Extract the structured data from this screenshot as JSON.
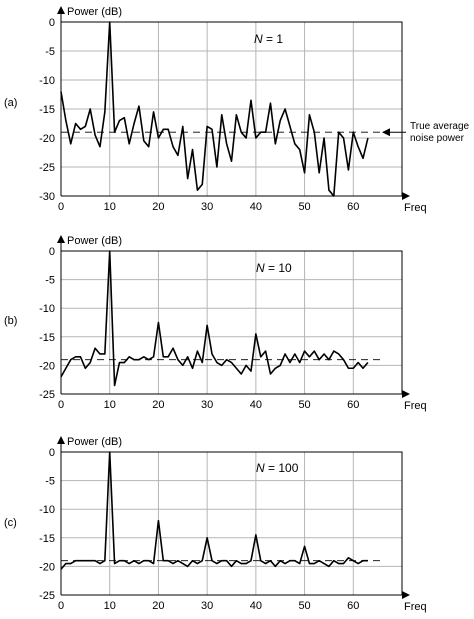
{
  "chart_data": [
    {
      "type": "line",
      "panel_label": "(a)",
      "n_label": "N = 1",
      "n_italic": "N",
      "n_rest": " = 1",
      "ylabel": "Power (dB)",
      "xlabel": "Freq",
      "xlim": [
        0,
        70
      ],
      "ylim": [
        -30,
        0
      ],
      "xticks": [
        0,
        10,
        20,
        30,
        40,
        50,
        60
      ],
      "yticks": [
        0,
        -5,
        -10,
        -15,
        -20,
        -25,
        -30
      ],
      "reference_level": -19,
      "annotation": [
        "True average",
        "noise power"
      ],
      "x": [
        0,
        1,
        2,
        3,
        4,
        5,
        6,
        7,
        8,
        9,
        10,
        11,
        12,
        13,
        14,
        15,
        16,
        17,
        18,
        19,
        20,
        21,
        22,
        23,
        24,
        25,
        26,
        27,
        28,
        29,
        30,
        31,
        32,
        33,
        34,
        35,
        36,
        37,
        38,
        39,
        40,
        41,
        42,
        43,
        44,
        45,
        46,
        47,
        48,
        49,
        50,
        51,
        52,
        53,
        54,
        55,
        56,
        57,
        58,
        59,
        60,
        61,
        62,
        63
      ],
      "values": [
        -12,
        -17,
        -21,
        -17.5,
        -18.5,
        -18,
        -15,
        -19.5,
        -21.5,
        -15.5,
        0,
        -19,
        -17,
        -16.5,
        -21,
        -17.5,
        -14.5,
        -20.5,
        -21.5,
        -15.5,
        -20,
        -18.5,
        -18.5,
        -21.5,
        -23,
        -18,
        -27,
        -22,
        -29,
        -28,
        -18,
        -18.5,
        -25,
        -16,
        -21,
        -24,
        -16,
        -19,
        -20,
        -13.5,
        -20,
        -19,
        -19,
        -14,
        -21,
        -17,
        -15,
        -18,
        -21,
        -22,
        -26,
        -16,
        -19,
        -26,
        -20,
        -29,
        -30,
        -19,
        -20,
        -25.5,
        -19,
        -21.5,
        -23.5,
        -20
      ]
    },
    {
      "type": "line",
      "panel_label": "(b)",
      "n_label": "N = 10",
      "n_italic": "N",
      "n_rest": " = 10",
      "ylabel": "Power (dB)",
      "xlabel": "Freq",
      "xlim": [
        0,
        70
      ],
      "ylim": [
        -25,
        0
      ],
      "xticks": [
        0,
        10,
        20,
        30,
        40,
        50,
        60
      ],
      "yticks": [
        0,
        -5,
        -10,
        -15,
        -20,
        -25
      ],
      "reference_level": -19,
      "x": [
        0,
        1,
        2,
        3,
        4,
        5,
        6,
        7,
        8,
        9,
        10,
        11,
        12,
        13,
        14,
        15,
        16,
        17,
        18,
        19,
        20,
        21,
        22,
        23,
        24,
        25,
        26,
        27,
        28,
        29,
        30,
        31,
        32,
        33,
        34,
        35,
        36,
        37,
        38,
        39,
        40,
        41,
        42,
        43,
        44,
        45,
        46,
        47,
        48,
        49,
        50,
        51,
        52,
        53,
        54,
        55,
        56,
        57,
        58,
        59,
        60,
        61,
        62,
        63
      ],
      "values": [
        -22,
        -20.5,
        -19,
        -18.5,
        -18.5,
        -20.5,
        -19.5,
        -17,
        -18,
        -18,
        0,
        -23.5,
        -19.5,
        -19.5,
        -18.5,
        -19,
        -19,
        -18.5,
        -19,
        -18.5,
        -12.5,
        -18.5,
        -18.5,
        -17,
        -19,
        -20,
        -18.5,
        -20.5,
        -17.5,
        -19.5,
        -13,
        -18,
        -19.5,
        -20,
        -19,
        -19.5,
        -20.5,
        -21.5,
        -20,
        -21,
        -14.5,
        -18.5,
        -17.5,
        -21.5,
        -20.5,
        -20,
        -18,
        -19.5,
        -18,
        -19.5,
        -17.5,
        -18.5,
        -17.5,
        -19,
        -18,
        -19,
        -17.5,
        -18,
        -19,
        -20.5,
        -20.5,
        -19.5,
        -20.5,
        -19.5
      ]
    },
    {
      "type": "line",
      "panel_label": "(c)",
      "n_label": "N = 100",
      "n_italic": "N",
      "n_rest": " = 100",
      "ylabel": "Power (dB)",
      "xlabel": "Freq",
      "xlim": [
        0,
        70
      ],
      "ylim": [
        -25,
        0
      ],
      "xticks": [
        0,
        10,
        20,
        30,
        40,
        50,
        60
      ],
      "yticks": [
        0,
        -5,
        -10,
        -15,
        -20,
        -25
      ],
      "reference_level": -19,
      "x": [
        0,
        1,
        2,
        3,
        4,
        5,
        6,
        7,
        8,
        9,
        10,
        11,
        12,
        13,
        14,
        15,
        16,
        17,
        18,
        19,
        20,
        21,
        22,
        23,
        24,
        25,
        26,
        27,
        28,
        29,
        30,
        31,
        32,
        33,
        34,
        35,
        36,
        37,
        38,
        39,
        40,
        41,
        42,
        43,
        44,
        45,
        46,
        47,
        48,
        49,
        50,
        51,
        52,
        53,
        54,
        55,
        56,
        57,
        58,
        59,
        60,
        61,
        62,
        63
      ],
      "values": [
        -20.5,
        -19.5,
        -19.5,
        -19,
        -19,
        -19,
        -19,
        -19,
        -19.5,
        -19,
        0,
        -19.5,
        -19,
        -19,
        -19.5,
        -19,
        -19.5,
        -19,
        -19,
        -19.5,
        -12,
        -19,
        -19,
        -19.5,
        -19,
        -19.5,
        -20,
        -19,
        -19.5,
        -19,
        -15,
        -19,
        -19.5,
        -19,
        -19,
        -20,
        -19,
        -19.5,
        -19.5,
        -19,
        -14.5,
        -19,
        -19.5,
        -19,
        -20,
        -19,
        -19.5,
        -19,
        -19,
        -19.5,
        -16.5,
        -19.5,
        -19.5,
        -19,
        -19.5,
        -20,
        -19,
        -19.5,
        -19.5,
        -18.5,
        -19,
        -19.5,
        -19,
        -19
      ]
    }
  ]
}
